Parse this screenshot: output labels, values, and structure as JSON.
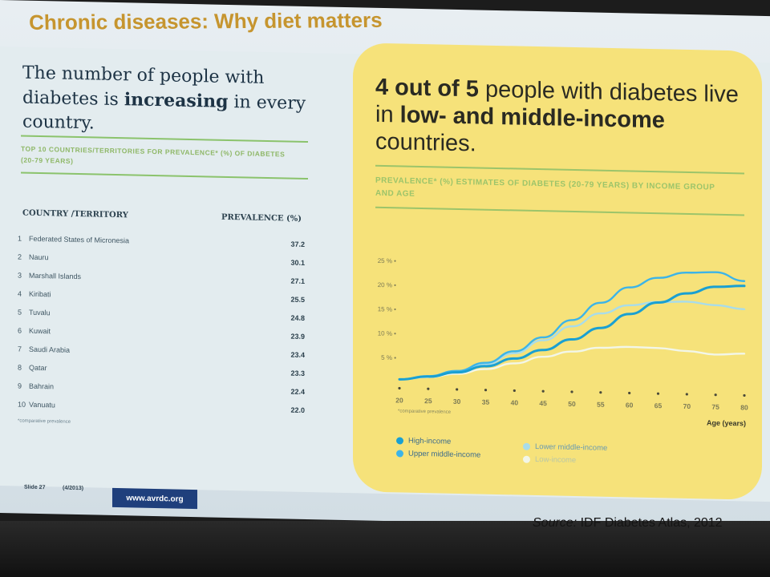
{
  "slide": {
    "title": "Chronic diseases: Why diet matters",
    "slide_number": "Slide 27",
    "date": "(4/2013)",
    "url": "www.avrdc.org",
    "source_label": "Source:",
    "source_text": "IDF Diabetes Atlas, 2012"
  },
  "left": {
    "heading_part1": "The number of people with diabetes is ",
    "heading_bold": "increasing",
    "heading_part2": " in every country.",
    "subtitle": "TOP 10 COUNTRIES/TERRITORIES FOR PREVALENCE* (%) OF DIABETES (20-79 YEARS)",
    "col_country": "COUNTRY /TERRITORY",
    "col_prevalence": "PREVALENCE (%)",
    "footnote": "*comparative prevalence",
    "rows": [
      {
        "rank": "1",
        "name": "Federated States of Micronesia",
        "value": "37.2"
      },
      {
        "rank": "2",
        "name": "Nauru",
        "value": "30.1"
      },
      {
        "rank": "3",
        "name": "Marshall Islands",
        "value": "27.1"
      },
      {
        "rank": "4",
        "name": "Kiribati",
        "value": "25.5"
      },
      {
        "rank": "5",
        "name": "Tuvalu",
        "value": "24.8"
      },
      {
        "rank": "6",
        "name": "Kuwait",
        "value": "23.9"
      },
      {
        "rank": "7",
        "name": "Saudi Arabia",
        "value": "23.4"
      },
      {
        "rank": "8",
        "name": "Qatar",
        "value": "23.3"
      },
      {
        "rank": "9",
        "name": "Bahrain",
        "value": "22.4"
      },
      {
        "rank": "10",
        "name": "Vanuatu",
        "value": "22.0"
      }
    ]
  },
  "right": {
    "heading_bold1": "4 out of 5",
    "heading_part1": " people with diabetes live in ",
    "heading_bold2": "low- and middle-income",
    "heading_part2": " countries.",
    "subtitle": "PREVALENCE* (%) ESTIMATES OF DIABETES (20-79 YEARS) BY INCOME GROUP AND AGE",
    "footnote": "*comparative prevalence"
  },
  "colors": {
    "high_income": "#1aa0d2",
    "upper_middle": "#3cb4e8",
    "lower_middle": "#a8dcea",
    "low_income": "#f2f6e8"
  },
  "chart_data": {
    "type": "line",
    "xlabel": "Age (years)",
    "ylabel": "",
    "x": [
      20,
      25,
      30,
      35,
      40,
      45,
      50,
      55,
      60,
      65,
      70,
      75,
      80
    ],
    "x_tick_labels": [
      "20",
      "25",
      "30",
      "35",
      "40",
      "45",
      "50",
      "55",
      "60",
      "65",
      "70",
      "75",
      "80"
    ],
    "ylim": [
      0,
      25
    ],
    "y_ticks": [
      5,
      10,
      15,
      20,
      25
    ],
    "y_tick_labels": [
      "5 %",
      "10 %",
      "15 %",
      "20 %",
      "25 %"
    ],
    "grid": false,
    "legend_position": "bottom",
    "series": [
      {
        "name": "High-income",
        "color": "#1aa0d2",
        "values": [
          0.5,
          1.2,
          2.2,
          3.6,
          5.3,
          7.2,
          9.5,
          12.0,
          15.0,
          17.5,
          19.5,
          21.0,
          21.3
        ]
      },
      {
        "name": "Upper middle-income",
        "color": "#3cb4e8",
        "values": [
          0.5,
          1.3,
          2.5,
          4.3,
          6.8,
          9.8,
          13.5,
          17.2,
          20.5,
          22.6,
          23.8,
          24.0,
          22.3
        ]
      },
      {
        "name": "Lower middle-income",
        "color": "#a8dcea",
        "values": [
          0.5,
          1.3,
          2.4,
          4.0,
          6.4,
          9.2,
          12.2,
          15.0,
          16.8,
          17.6,
          17.8,
          17.2,
          16.5
        ]
      },
      {
        "name": "Low-income",
        "color": "#f2f6e8",
        "values": [
          0.5,
          1.1,
          1.9,
          3.0,
          4.3,
          5.8,
          7.0,
          7.9,
          8.2,
          8.1,
          7.6,
          7.0,
          7.3
        ]
      }
    ]
  }
}
